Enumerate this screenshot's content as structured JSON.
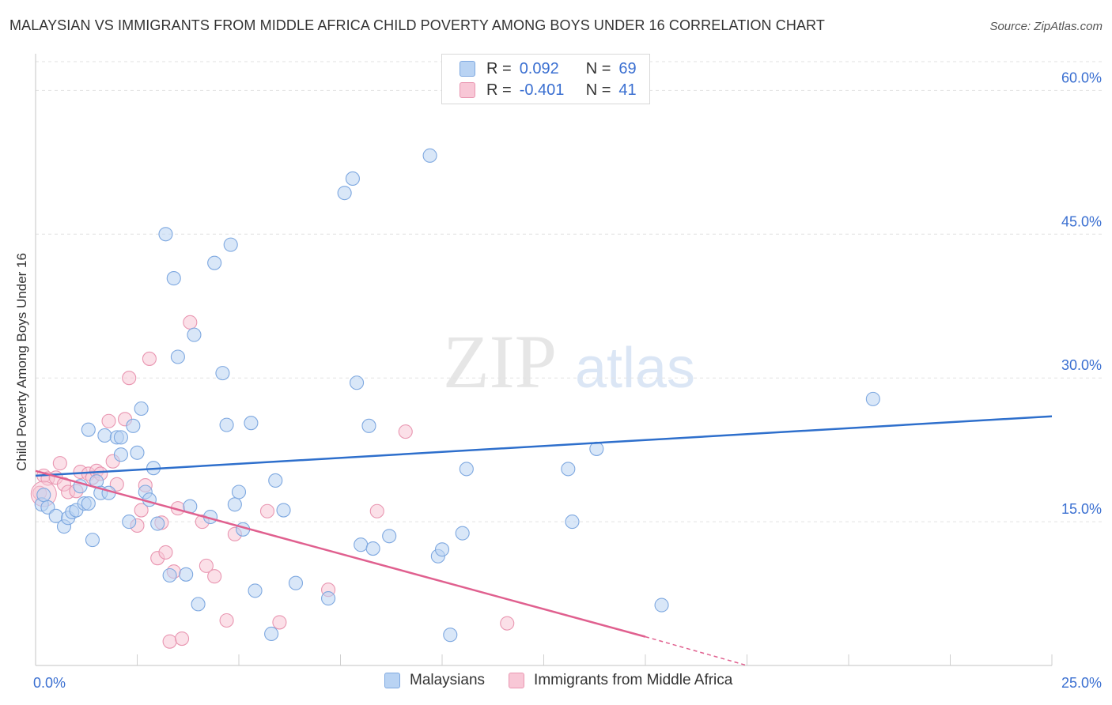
{
  "header": {
    "title": "MALAYSIAN VS IMMIGRANTS FROM MIDDLE AFRICA CHILD POVERTY AMONG BOYS UNDER 16 CORRELATION CHART",
    "source": "Source: ZipAtlas.com"
  },
  "watermark": {
    "zip": "ZIP",
    "atlas": "atlas"
  },
  "legend": {
    "r_label": "R =",
    "n_label": "N =",
    "rows": [
      {
        "r_value": "0.092",
        "n_value": "69"
      },
      {
        "r_value": "-0.401",
        "n_value": "41"
      }
    ]
  },
  "bottom_legend": [
    "Malaysians",
    "Immigrants from Middle Africa"
  ],
  "colors": {
    "blue_fill": "#b9d3f3",
    "blue_stroke": "#7ea8e0",
    "blue_line": "#2e6fcc",
    "pink_fill": "#f8c7d6",
    "pink_stroke": "#e996b1",
    "pink_line": "#e0608f",
    "axis_label_blue": "#3a6fd1",
    "grid": "#e2e2e2"
  },
  "chart_data": {
    "type": "scatter",
    "title": "MALAYSIAN VS IMMIGRANTS FROM MIDDLE AFRICA CHILD POVERTY AMONG BOYS UNDER 16 CORRELATION CHART",
    "xlabel": "",
    "ylabel": "Child Poverty Among Boys Under 16",
    "xlim": [
      0,
      25
    ],
    "ylim": [
      0,
      63
    ],
    "x_tick_labels": [
      {
        "value": 0,
        "label": "0.0%"
      },
      {
        "value": 25,
        "label": "25.0%"
      }
    ],
    "y_tick_labels": [
      {
        "value": 15,
        "label": "15.0%"
      },
      {
        "value": 30,
        "label": "30.0%"
      },
      {
        "value": 45,
        "label": "45.0%"
      },
      {
        "value": 60,
        "label": "60.0%"
      }
    ],
    "grid": true,
    "series": [
      {
        "name": "Malaysians",
        "r": 0.092,
        "n": 69,
        "trend": {
          "x0": 0,
          "y0": 19.8,
          "x1": 25,
          "y1": 26.0
        },
        "points": [
          [
            0.15,
            16.8
          ],
          [
            0.2,
            17.8
          ],
          [
            0.3,
            16.5
          ],
          [
            0.5,
            15.6
          ],
          [
            0.7,
            14.5
          ],
          [
            0.8,
            15.4
          ],
          [
            0.9,
            16.0
          ],
          [
            1.0,
            16.2
          ],
          [
            1.1,
            18.7
          ],
          [
            1.2,
            16.9
          ],
          [
            1.3,
            16.9
          ],
          [
            1.3,
            24.6
          ],
          [
            1.4,
            13.1
          ],
          [
            1.5,
            19.2
          ],
          [
            1.6,
            18.0
          ],
          [
            1.7,
            24.0
          ],
          [
            1.8,
            18.0
          ],
          [
            2.0,
            23.8
          ],
          [
            2.1,
            23.8
          ],
          [
            2.1,
            22.0
          ],
          [
            2.3,
            15.0
          ],
          [
            2.4,
            25.0
          ],
          [
            2.5,
            22.2
          ],
          [
            2.6,
            26.8
          ],
          [
            2.7,
            18.1
          ],
          [
            2.8,
            17.3
          ],
          [
            2.9,
            20.6
          ],
          [
            3.0,
            14.8
          ],
          [
            3.2,
            45.0
          ],
          [
            3.3,
            9.4
          ],
          [
            3.4,
            40.4
          ],
          [
            3.5,
            32.2
          ],
          [
            3.7,
            9.5
          ],
          [
            3.8,
            16.6
          ],
          [
            3.9,
            34.5
          ],
          [
            4.0,
            6.4
          ],
          [
            4.3,
            15.5
          ],
          [
            4.4,
            42.0
          ],
          [
            4.6,
            30.5
          ],
          [
            4.7,
            25.1
          ],
          [
            4.8,
            43.9
          ],
          [
            4.9,
            16.8
          ],
          [
            5.0,
            18.1
          ],
          [
            5.1,
            14.2
          ],
          [
            5.3,
            25.3
          ],
          [
            5.4,
            7.8
          ],
          [
            5.8,
            3.3
          ],
          [
            5.9,
            19.3
          ],
          [
            6.1,
            16.2
          ],
          [
            6.4,
            8.6
          ],
          [
            7.2,
            7.0
          ],
          [
            7.6,
            49.3
          ],
          [
            7.8,
            50.8
          ],
          [
            7.9,
            29.5
          ],
          [
            8.0,
            12.6
          ],
          [
            8.2,
            25.0
          ],
          [
            8.3,
            12.2
          ],
          [
            8.7,
            13.5
          ],
          [
            9.7,
            53.2
          ],
          [
            9.9,
            11.4
          ],
          [
            10.0,
            12.1
          ],
          [
            10.2,
            3.2
          ],
          [
            10.5,
            13.8
          ],
          [
            10.6,
            20.5
          ],
          [
            13.1,
            20.5
          ],
          [
            13.2,
            15.0
          ],
          [
            13.8,
            22.6
          ],
          [
            15.4,
            6.3
          ],
          [
            20.6,
            27.8
          ]
        ]
      },
      {
        "name": "Immigrants from Middle Africa",
        "r": -0.401,
        "n": 41,
        "trend": {
          "x0": 0,
          "y0": 20.3,
          "x1": 15.0,
          "y1": 3.0,
          "dash_x1": 17.5,
          "dash_y1": 0.0
        },
        "points": [
          [
            0.1,
            18.0
          ],
          [
            0.2,
            19.8
          ],
          [
            0.3,
            19.5
          ],
          [
            0.5,
            19.6
          ],
          [
            0.6,
            21.1
          ],
          [
            0.7,
            18.9
          ],
          [
            0.8,
            18.1
          ],
          [
            1.0,
            18.2
          ],
          [
            1.1,
            20.2
          ],
          [
            1.3,
            20.0
          ],
          [
            1.4,
            19.6
          ],
          [
            1.5,
            20.3
          ],
          [
            1.6,
            20.0
          ],
          [
            1.8,
            25.5
          ],
          [
            1.9,
            21.3
          ],
          [
            2.0,
            18.9
          ],
          [
            2.2,
            25.7
          ],
          [
            2.3,
            30.0
          ],
          [
            2.5,
            14.6
          ],
          [
            2.6,
            16.2
          ],
          [
            2.7,
            18.8
          ],
          [
            2.8,
            32.0
          ],
          [
            3.0,
            11.2
          ],
          [
            3.1,
            14.9
          ],
          [
            3.2,
            11.8
          ],
          [
            3.3,
            2.5
          ],
          [
            3.4,
            9.8
          ],
          [
            3.5,
            16.4
          ],
          [
            3.6,
            2.8
          ],
          [
            3.8,
            35.8
          ],
          [
            4.1,
            15.0
          ],
          [
            4.2,
            10.4
          ],
          [
            4.4,
            9.3
          ],
          [
            4.7,
            4.7
          ],
          [
            4.9,
            13.7
          ],
          [
            5.7,
            16.1
          ],
          [
            6.0,
            4.5
          ],
          [
            7.2,
            7.9
          ],
          [
            8.4,
            16.1
          ],
          [
            9.1,
            24.4
          ],
          [
            11.6,
            4.4
          ]
        ]
      }
    ]
  }
}
